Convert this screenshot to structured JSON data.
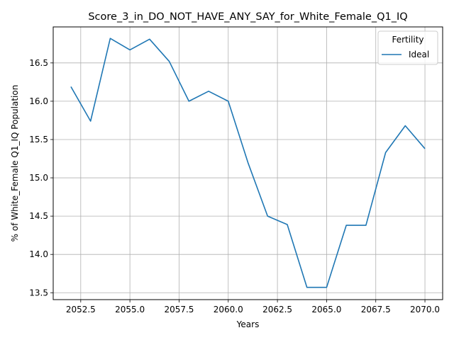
{
  "chart_data": {
    "type": "line",
    "title": "Score_3_in_DO_NOT_HAVE_ANY_SAY_for_White_Female_Q1_IQ",
    "xlabel": "Years",
    "ylabel": "% of White_Female Q1_IQ Population",
    "xlim": [
      2051.1,
      2070.9
    ],
    "ylim": [
      13.41,
      16.97
    ],
    "xticks": [
      2052.5,
      2055.0,
      2057.5,
      2060.0,
      2062.5,
      2065.0,
      2067.5,
      2070.0
    ],
    "xtick_labels": [
      "2052.5",
      "2055.0",
      "2057.5",
      "2060.0",
      "2062.5",
      "2065.0",
      "2067.5",
      "2070.0"
    ],
    "yticks": [
      13.5,
      14.0,
      14.5,
      15.0,
      15.5,
      16.0,
      16.5
    ],
    "ytick_labels": [
      "13.5",
      "14.0",
      "14.5",
      "15.0",
      "15.5",
      "16.0",
      "16.5"
    ],
    "grid": true,
    "legend": {
      "title": "Fertility",
      "placement": "top-right"
    },
    "series": [
      {
        "name": "Ideal",
        "color": "#1f77b4",
        "x": [
          2052,
          2053,
          2054,
          2055,
          2056,
          2057,
          2058,
          2059,
          2060,
          2061,
          2062,
          2063,
          2064,
          2065,
          2066,
          2067,
          2068,
          2069,
          2070
        ],
        "y": [
          16.19,
          15.74,
          16.82,
          16.67,
          16.81,
          16.52,
          16.0,
          16.13,
          16.0,
          15.2,
          14.5,
          14.39,
          13.57,
          13.57,
          14.38,
          14.38,
          15.33,
          15.68,
          15.38
        ]
      }
    ]
  }
}
